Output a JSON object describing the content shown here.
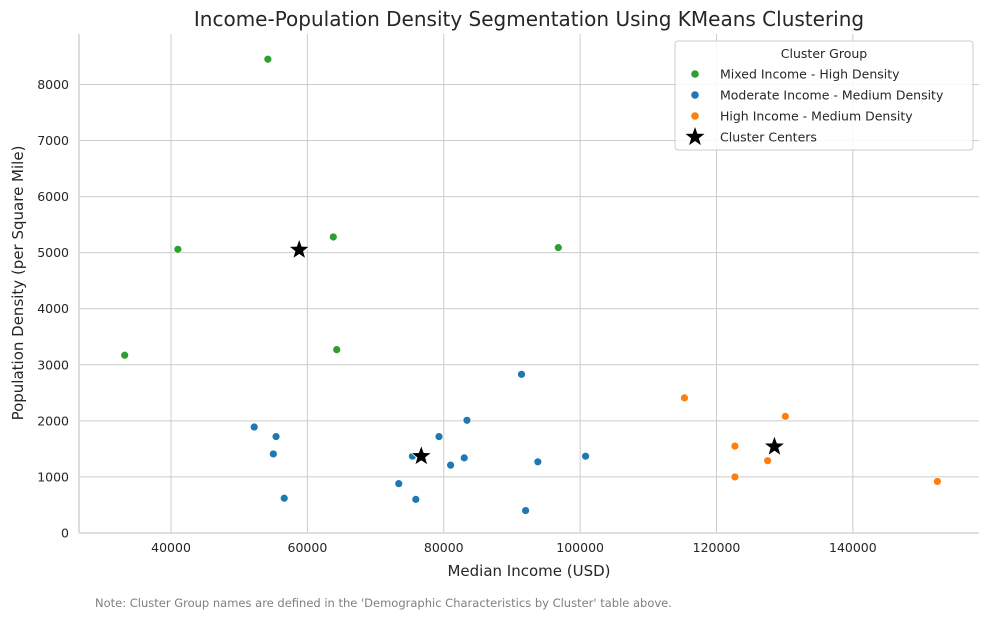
{
  "chart_data": {
    "type": "scatter",
    "title": "Income-Population Density Segmentation Using KMeans Clustering",
    "xlabel": "Median Income (USD)",
    "ylabel": "Population Density (per Square Mile)",
    "xlim": [
      26500,
      158500
    ],
    "ylim": [
      0,
      8900
    ],
    "xticks": [
      40000,
      60000,
      80000,
      100000,
      120000,
      140000
    ],
    "yticks": [
      0,
      1000,
      2000,
      3000,
      4000,
      5000,
      6000,
      7000,
      8000
    ],
    "grid": true,
    "legend": {
      "title": "Cluster Group",
      "placement": "top-right"
    },
    "series": [
      {
        "name": "Mixed Income - High Density",
        "color": "#2ca02c",
        "marker": "circle",
        "points": [
          [
            54200,
            8450
          ],
          [
            41000,
            5060
          ],
          [
            63800,
            5280
          ],
          [
            96800,
            5090
          ],
          [
            33200,
            3170
          ],
          [
            64300,
            3270
          ]
        ]
      },
      {
        "name": "Moderate Income - Medium Density",
        "color": "#1f77b4",
        "marker": "circle",
        "points": [
          [
            91400,
            2830
          ],
          [
            83400,
            2010
          ],
          [
            52200,
            1890
          ],
          [
            55400,
            1720
          ],
          [
            79300,
            1720
          ],
          [
            55000,
            1410
          ],
          [
            75400,
            1370
          ],
          [
            83000,
            1340
          ],
          [
            81000,
            1210
          ],
          [
            93800,
            1270
          ],
          [
            100800,
            1370
          ],
          [
            73400,
            880
          ],
          [
            56600,
            620
          ],
          [
            75900,
            600
          ],
          [
            92000,
            400
          ]
        ]
      },
      {
        "name": "High Income - Medium Density",
        "color": "#ff7f0e",
        "marker": "circle",
        "points": [
          [
            115300,
            2410
          ],
          [
            130100,
            2080
          ],
          [
            122700,
            1550
          ],
          [
            127500,
            1290
          ],
          [
            122700,
            1000
          ],
          [
            152400,
            920
          ]
        ]
      },
      {
        "name": "Cluster Centers",
        "color": "#000000",
        "marker": "star",
        "points": [
          [
            58800,
            5050
          ],
          [
            76700,
            1370
          ],
          [
            128500,
            1540
          ]
        ]
      }
    ]
  },
  "note": "Note: Cluster Group names are defined in the 'Demographic Characteristics by Cluster' table above."
}
